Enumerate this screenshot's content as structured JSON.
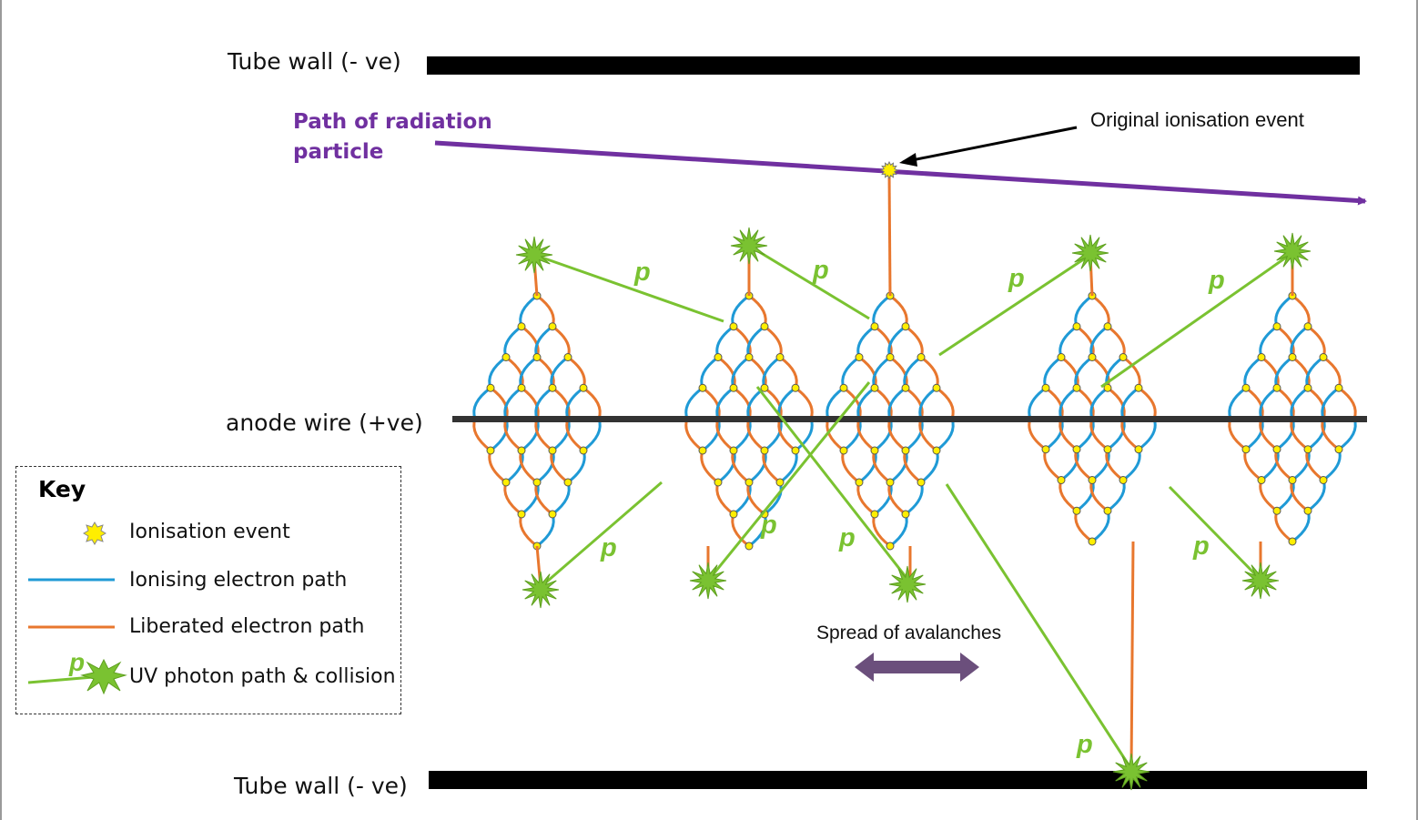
{
  "labels": {
    "tube_wall_top": "Tube wall (- ve)",
    "tube_wall_bottom": "Tube wall (- ve)",
    "anode_wire": "anode wire  (+ve)",
    "radiation_path_line1": "Path of radiation",
    "radiation_path_line2": "particle",
    "original_event": "Original ionisation event",
    "spread": "Spread of avalanches",
    "photon_symbol": "p"
  },
  "key": {
    "title": "Key",
    "items": [
      {
        "label": "Ionisation event",
        "icon": "yellow-star-dot"
      },
      {
        "label": "Ionising electron path",
        "icon": "blue-line"
      },
      {
        "label": "Liberated electron path",
        "icon": "orange-line"
      },
      {
        "label": "UV photon path & collision",
        "icon": "green-line-star"
      }
    ]
  },
  "colors": {
    "ionising_path": "#1f9ad6",
    "liberated_path": "#e8772e",
    "photon": "#7ac231",
    "radiation": "#7030a0",
    "event": "#ffee00",
    "spread_arrow": "#6b4f7c",
    "wall": "#000000",
    "anode": "#333333"
  }
}
